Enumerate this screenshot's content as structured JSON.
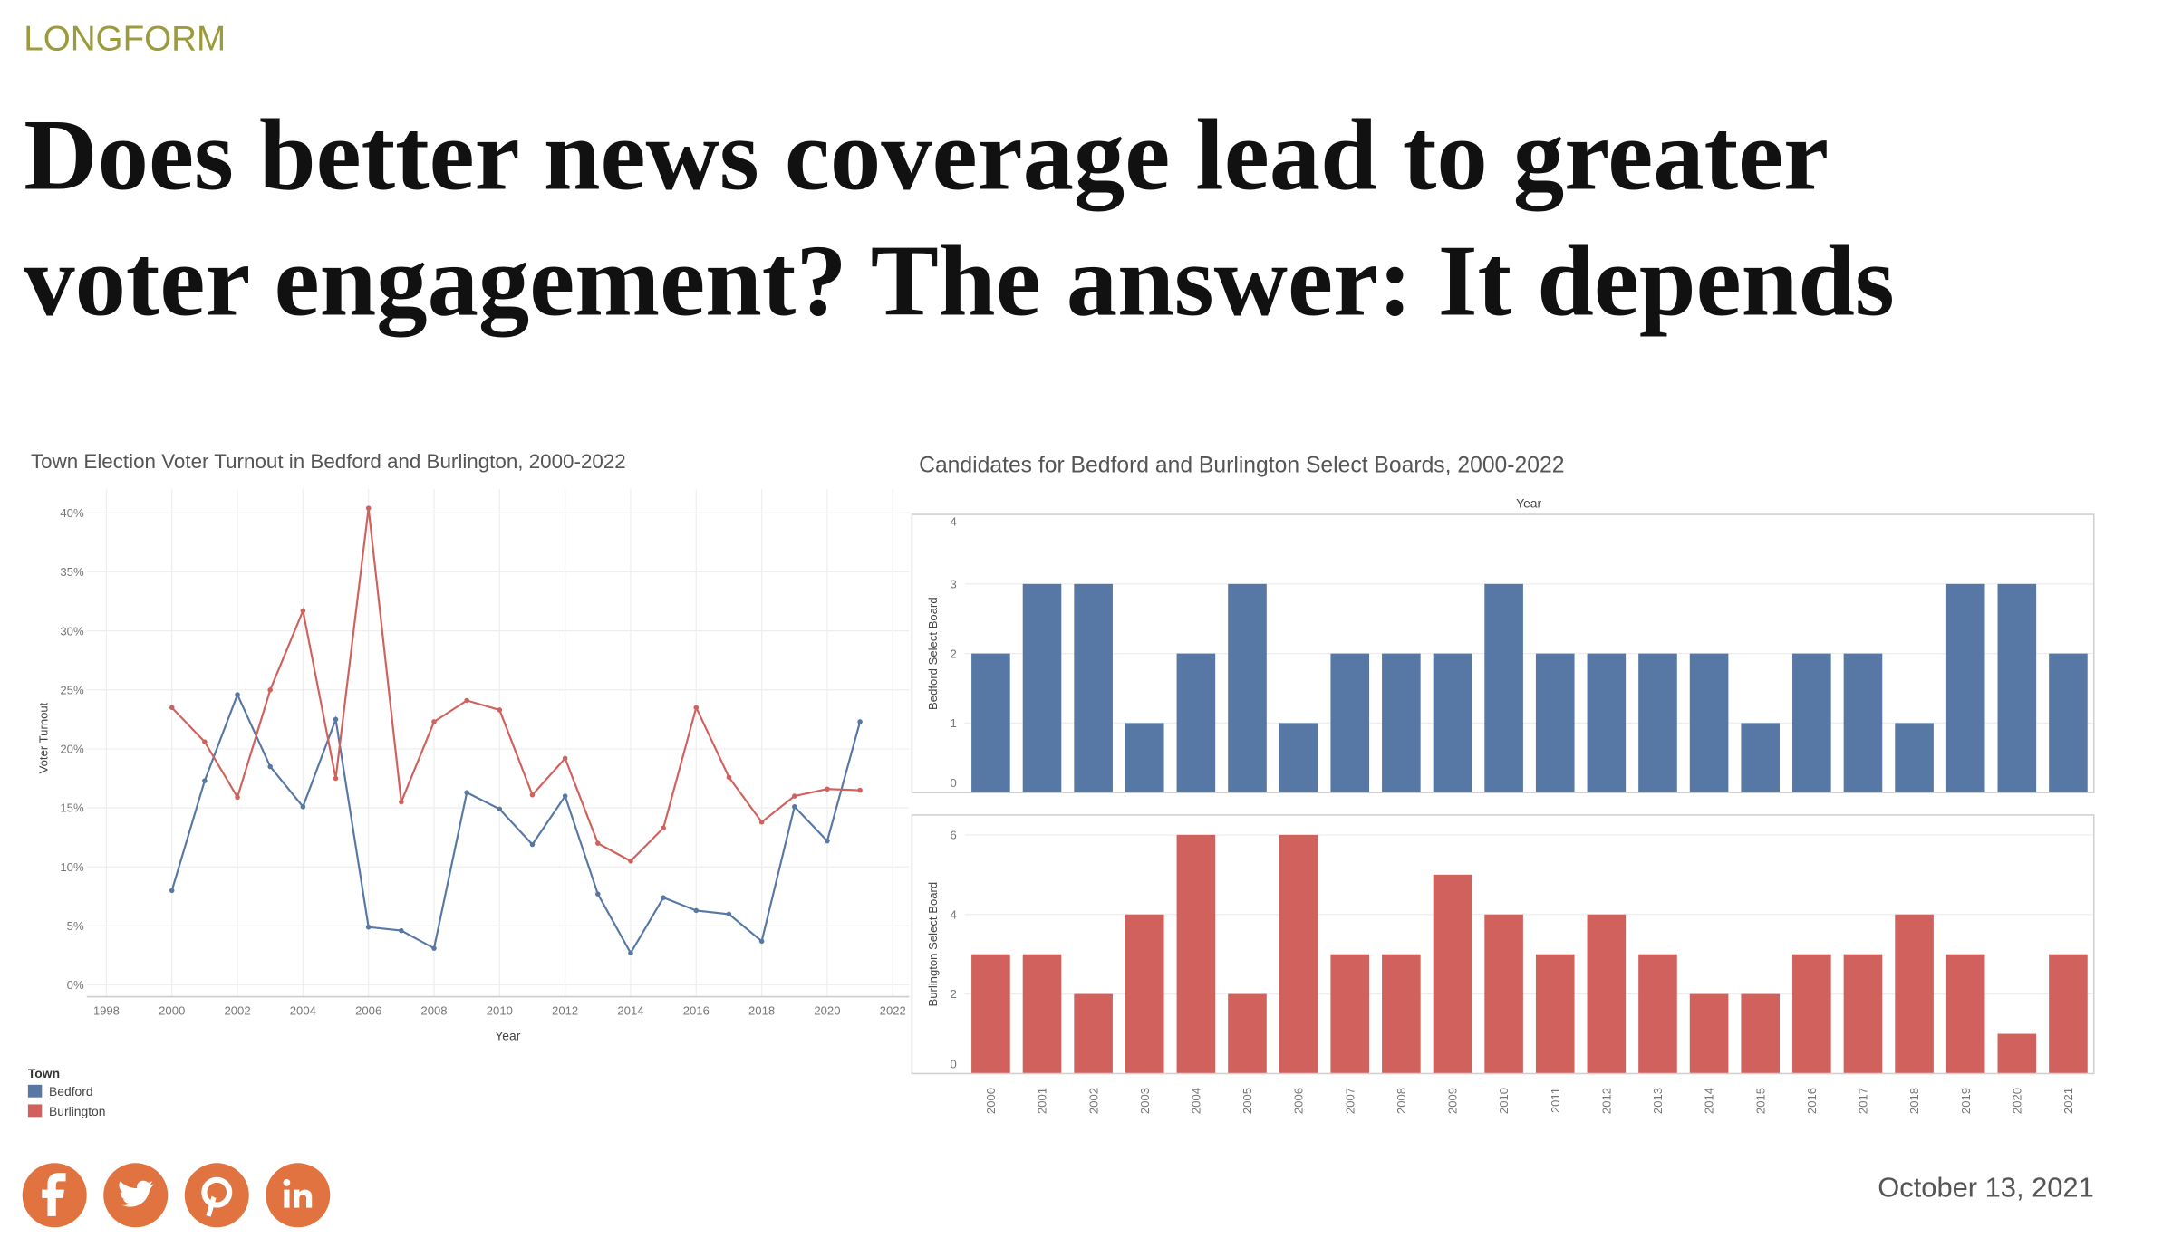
{
  "section": "LONGFORM",
  "headline": [
    "Does better news coverage lead to greater",
    "voter engagement? The answer: It depends"
  ],
  "date": "October 13, 2021",
  "chart_data": [
    {
      "type": "line",
      "title": "Town Election Voter Turnout in Bedford and Burlington, 2000-2022",
      "x_label": "Year",
      "y_label": "Voter Turnout",
      "legend_title": "Town",
      "legend": "bottom-left",
      "grid": true,
      "x": [
        2000,
        2001,
        2002,
        2003,
        2004,
        2005,
        2006,
        2007,
        2008,
        2009,
        2010,
        2011,
        2012,
        2013,
        2014,
        2015,
        2016,
        2017,
        2018,
        2019,
        2020,
        2021
      ],
      "xlim": [
        1997.4,
        2022.5
      ],
      "xticks": [
        1998,
        2000,
        2002,
        2004,
        2006,
        2008,
        2010,
        2012,
        2014,
        2016,
        2018,
        2020,
        2022
      ],
      "ylim": [
        -1,
        42
      ],
      "yticks": [
        {
          "value": 0,
          "label": "0%"
        },
        {
          "value": 5,
          "label": "5%"
        },
        {
          "value": 10,
          "label": "10%"
        },
        {
          "value": 15,
          "label": "15%"
        },
        {
          "value": 20,
          "label": "20%"
        },
        {
          "value": 25,
          "label": "25%"
        },
        {
          "value": 30,
          "label": "30%"
        },
        {
          "value": 35,
          "label": "35%"
        },
        {
          "value": 40,
          "label": "40%"
        }
      ],
      "series": [
        {
          "name": "Bedford",
          "color": "#5778a4",
          "values": [
            8,
            17.3,
            24.6,
            18.5,
            15.1,
            22.5,
            4.9,
            4.6,
            3.1,
            16.3,
            14.9,
            11.9,
            16,
            7.7,
            2.7,
            7.4,
            6.3,
            6,
            3.7,
            15.1,
            12.2,
            22.3
          ]
        },
        {
          "name": "Burlington",
          "color": "#d1615d",
          "values": [
            23.5,
            20.6,
            15.9,
            25,
            31.7,
            17.5,
            40.4,
            15.5,
            22.3,
            24.1,
            23.3,
            16.1,
            19.2,
            12,
            10.5,
            13.3,
            23.5,
            17.6,
            13.8,
            16,
            16.6,
            16.5
          ]
        }
      ]
    },
    {
      "type": "bar",
      "title": "Candidates for Bedford and Burlington Select Boards, 2000-2022",
      "x_label": "Year",
      "grid": true,
      "categories": [
        "2000",
        "2001",
        "2002",
        "2003",
        "2004",
        "2005",
        "2006",
        "2007",
        "2008",
        "2009",
        "2010",
        "2011",
        "2012",
        "2013",
        "2014",
        "2015",
        "2016",
        "2017",
        "2018",
        "2019",
        "2020",
        "2021"
      ],
      "series": [
        {
          "name": "Bedford Select Board",
          "color": "#5778a4",
          "ylim": [
            0,
            4
          ],
          "yticks": [
            0,
            1,
            2,
            3,
            4
          ],
          "values": [
            2,
            3,
            3,
            1,
            2,
            3,
            1,
            2,
            2,
            2,
            3,
            2,
            2,
            2,
            2,
            1,
            2,
            2,
            1,
            3,
            3,
            2
          ]
        },
        {
          "name": "Burlington Select Board",
          "color": "#d1615d",
          "ylim": [
            0,
            6.5
          ],
          "yticks": [
            0,
            2,
            4,
            6
          ],
          "values": [
            3,
            3,
            2,
            4,
            6,
            2,
            6,
            3,
            3,
            5,
            4,
            3,
            4,
            3,
            2,
            2,
            3,
            3,
            4,
            3,
            1,
            3
          ]
        }
      ]
    }
  ]
}
